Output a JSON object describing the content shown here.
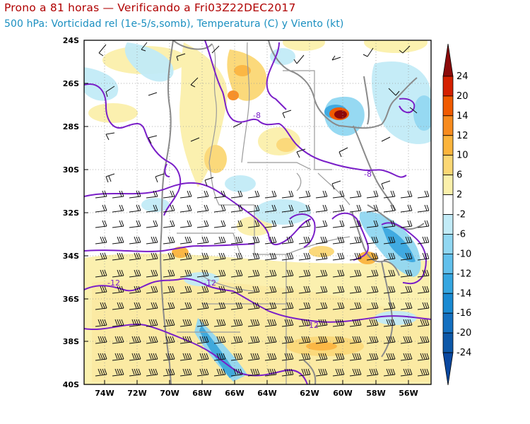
{
  "header": {
    "title": "Prono a 81 horas — Verificando a Fri03Z22DEC2017",
    "subtitle": "500 hPa: Vorticidad rel (1e-5/s,somb), Temperatura (C) y Viento (kt)"
  },
  "map": {
    "lat_labels": [
      "24S",
      "26S",
      "28S",
      "30S",
      "32S",
      "34S",
      "36S",
      "38S",
      "40S"
    ],
    "lon_labels": [
      "74W",
      "72W",
      "70W",
      "68W",
      "66W",
      "64W",
      "62W",
      "60W",
      "58W",
      "56W"
    ],
    "temperature_contour_labels": [
      "-8",
      "-8",
      "-12",
      "-12",
      "-12"
    ]
  },
  "colorbar": {
    "labels": [
      "24",
      "20",
      "14",
      "12",
      "10",
      "6",
      "2",
      "-2",
      "-6",
      "-10",
      "-12",
      "-14",
      "-16",
      "-20",
      "-24"
    ],
    "colors": [
      "#8c0a0a",
      "#d42000",
      "#f05a00",
      "#f78b1e",
      "#fbb43c",
      "#fbd774",
      "#fbf0ab",
      "#ffffff",
      "#c2ebf7",
      "#91d7f2",
      "#62c0ec",
      "#36a6e0",
      "#1a8ad2",
      "#1470c0",
      "#0d58a8",
      "#0a48a0"
    ]
  },
  "colors": {
    "title": "#b00000",
    "subtitle": "#1a8fc0",
    "temperature_contour": "#7a1fc8",
    "borders": "#8a8a8a"
  }
}
